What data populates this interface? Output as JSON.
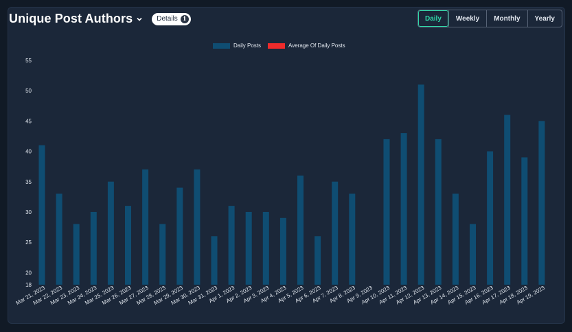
{
  "header": {
    "title": "Unique Post Authors",
    "details_label": "Details",
    "details_icon": "info-icon",
    "dropdown_icon": "chevron-down-icon"
  },
  "period_tabs": [
    {
      "label": "Daily",
      "active": true
    },
    {
      "label": "Weekly",
      "active": false
    },
    {
      "label": "Monthly",
      "active": false
    },
    {
      "label": "Yearly",
      "active": false
    }
  ],
  "colors": {
    "bar": "#0f4d72",
    "average": "#ee2b2b",
    "accent": "#30d9a9"
  },
  "chart_data": {
    "type": "bar",
    "title": "",
    "xlabel": "",
    "ylabel": "",
    "ylim": [
      18,
      55
    ],
    "yticks": [
      18,
      20,
      25,
      30,
      35,
      40,
      45,
      50,
      55
    ],
    "legend": [
      {
        "name": "Daily Posts",
        "color": "#0f4d72"
      },
      {
        "name": "Average Of Daily Posts",
        "color": "#ee2b2b"
      }
    ],
    "legend_position": "top-center",
    "grid": false,
    "categories": [
      "Mar 21, 2023",
      "Mar 22, 2023",
      "Mar 23, 2023",
      "Mar 24, 2023",
      "Mar 25, 2023",
      "Mar 26, 2023",
      "Mar 27, 2023",
      "Mar 28, 2023",
      "Mar 29, 2023",
      "Mar 30, 2023",
      "Mar 31, 2023",
      "Apr 1, 2023",
      "Apr 2, 2023",
      "Apr 3, 2023",
      "Apr 4, 2023",
      "Apr 5, 2023",
      "Apr 6, 2023",
      "Apr 7, 2023",
      "Apr 8, 2023",
      "Apr 9, 2023",
      "Apr 10, 2023",
      "Apr 11, 2023",
      "Apr 12, 2023",
      "Apr 13, 2023",
      "Apr 14, 2023",
      "Apr 15, 2023",
      "Apr 16, 2023",
      "Apr 17, 2023",
      "Apr 18, 2023",
      "Apr 19, 2023"
    ],
    "series": [
      {
        "name": "Daily Posts",
        "values": [
          41,
          33,
          28,
          30,
          35,
          31,
          37,
          28,
          34,
          37,
          26,
          31,
          30,
          30,
          29,
          36,
          26,
          35,
          33,
          null,
          42,
          43,
          51,
          42,
          33,
          28,
          40,
          46,
          39,
          45
        ]
      }
    ]
  }
}
